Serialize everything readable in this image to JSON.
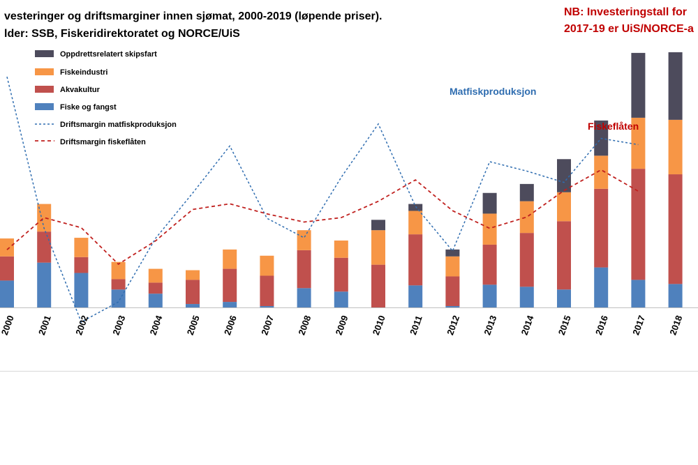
{
  "chart_data": {
    "type": "bar",
    "title": "vesteringer og driftsmarginer innen sjømat, 2000-2019 (løpende priser).",
    "subtitle": "lder: SSB, Fiskeridirektoratet  og NORCE/UiS",
    "note_lines": [
      "NB: Investeringstall  for",
      "2017-19 er UiS/NORCE-a"
    ],
    "categories": [
      "2000",
      "2001",
      "2002",
      "2003",
      "2004",
      "2005",
      "2006",
      "2007",
      "2008",
      "2009",
      "2010",
      "2011",
      "2012",
      "2013",
      "2014",
      "2015",
      "2016",
      "2017",
      "2018"
    ],
    "bar_series": [
      {
        "name": "Fiske og fangst",
        "color": "#4F81BD",
        "values": [
          3.9,
          6.5,
          5.0,
          2.6,
          2.0,
          0.5,
          0.8,
          0.2,
          2.8,
          2.3,
          0,
          3.2,
          0.2,
          3.3,
          3.0,
          2.6,
          5.8,
          4.0,
          3.4
        ]
      },
      {
        "name": "Akvakultur",
        "color": "#C0504D",
        "values": [
          3.5,
          4.5,
          2.3,
          1.5,
          1.6,
          3.5,
          4.8,
          4.4,
          5.5,
          4.9,
          6.2,
          7.4,
          4.3,
          5.8,
          7.8,
          9.9,
          11.4,
          16.1,
          15.9
        ]
      },
      {
        "name": "Fiskeindustri",
        "color": "#F79646",
        "values": [
          2.6,
          4.0,
          2.8,
          2.5,
          2.0,
          1.4,
          2.8,
          2.9,
          2.9,
          2.5,
          5.0,
          3.4,
          2.9,
          4.5,
          4.6,
          4.2,
          4.8,
          7.4,
          7.9
        ]
      },
      {
        "name": "Oppdrettsrelatert skipsfart",
        "color": "#4D4B5C",
        "values": [
          0,
          0,
          0,
          0,
          0,
          0,
          0,
          0,
          0,
          0,
          1.5,
          1.0,
          1.0,
          3.0,
          2.5,
          4.8,
          5.1,
          9.4,
          9.8
        ]
      }
    ],
    "line_series": [
      {
        "name": "Driftsmargin matfiskproduksjon",
        "color": "#2F6DB0",
        "style": "dashed",
        "values": [
          33,
          8.9,
          -6,
          -2.8,
          7.3,
          14.5,
          22,
          10.5,
          7.4,
          17,
          25.5,
          12.4,
          5.3,
          19.5,
          18,
          16.2,
          23.2,
          22.2,
          null
        ]
      },
      {
        "name": "Driftsmargin fiskeflåten",
        "color": "#C0201E",
        "style": "dashed",
        "values": [
          5.5,
          10.6,
          9,
          3.2,
          6.9,
          11.9,
          12.8,
          11.2,
          9.9,
          10.6,
          13.2,
          16.6,
          11.7,
          8.9,
          10.7,
          14.9,
          18.2,
          14.8,
          null
        ]
      }
    ],
    "y_bars_range": [
      0,
      38
    ],
    "y_lines_range": [
      -10,
      38
    ],
    "legend": [
      "Oppdrettsrelatert skipsfart",
      "Fiskeindustri",
      "Akvakultur",
      "Fiske og fangst",
      "Driftsmargin matfiskproduksjon",
      "Driftsmargin fiskeflåten"
    ],
    "annotations": [
      "Matfiskproduksjon",
      "Fiskeflåten"
    ],
    "grid": false
  }
}
